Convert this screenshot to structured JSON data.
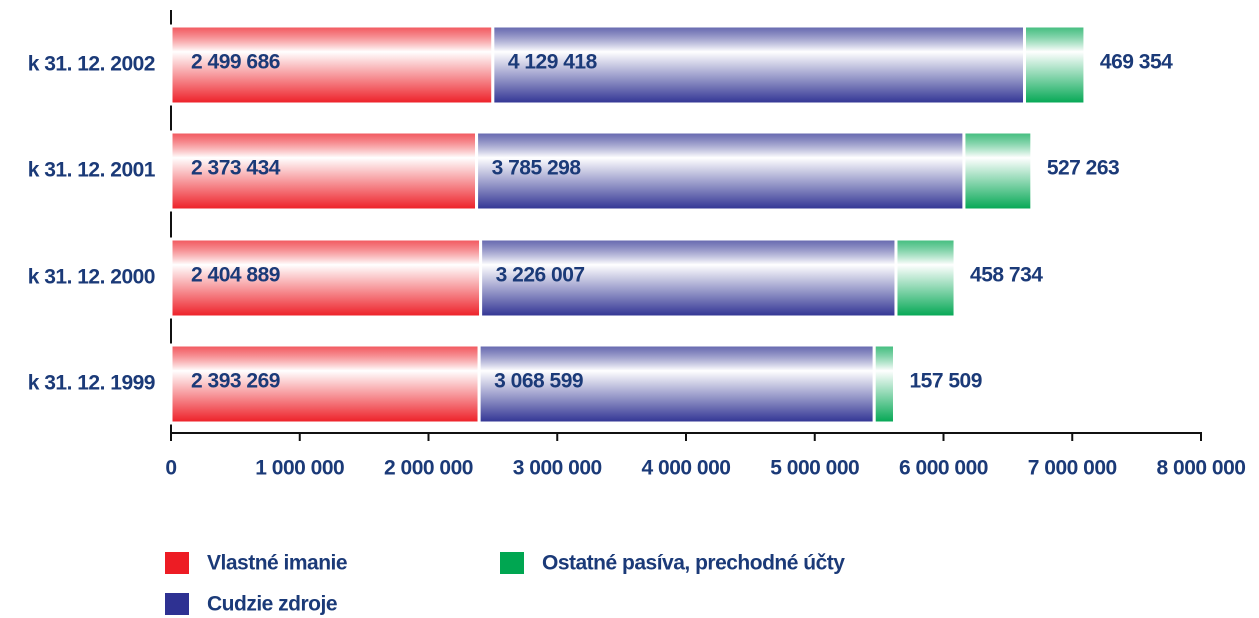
{
  "chart_data": {
    "type": "stacked-barh",
    "categories": [
      "k 31. 12. 2002",
      "k 31. 12. 2001",
      "k 31. 12. 2000",
      "k 31. 12. 1999"
    ],
    "series": [
      {
        "name": "Vlastné imanie",
        "color": "#ed1c24",
        "values": [
          2499686,
          2373434,
          2404889,
          2393269
        ],
        "value_labels": [
          "2 499 686",
          "2 373 434",
          "2 404 889",
          "2 393 269"
        ]
      },
      {
        "name": "Cudzie zdroje",
        "color": "#2e3192",
        "values": [
          4129418,
          3785298,
          3226007,
          3068599
        ],
        "value_labels": [
          "4 129 418",
          "3 785 298",
          "3 226 007",
          "3 068 599"
        ]
      },
      {
        "name": "Ostatné pasíva, prechodné účty",
        "color": "#00a651",
        "values": [
          469354,
          527263,
          458734,
          157509
        ],
        "value_labels": [
          "469 354",
          "527 263",
          "458 734",
          "157 509"
        ]
      }
    ],
    "xlim": [
      0,
      8000000
    ],
    "xticks": [
      0,
      {
        "value": 1000000,
        "label": "1 000 000"
      },
      {
        "value": 2000000,
        "label": "2 000 000"
      },
      {
        "value": 3000000,
        "label": "3 000 000"
      },
      {
        "value": 4000000,
        "label": "4 000 000"
      },
      {
        "value": 5000000,
        "label": "5 000 000"
      },
      {
        "value": 6000000,
        "label": "6 000 000"
      },
      {
        "value": 7000000,
        "label": "7 000 000"
      },
      {
        "value": 8000000,
        "label": "8 000 000"
      }
    ]
  }
}
